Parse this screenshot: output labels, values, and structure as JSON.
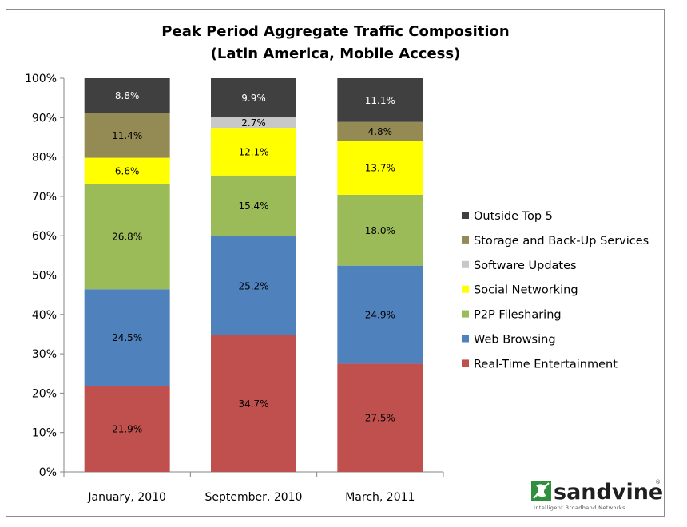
{
  "chart_data": {
    "type": "bar",
    "stacked": true,
    "percent_stacked": true,
    "title": "Peak Period Aggregate Traffic Composition",
    "subtitle": "(Latin America, Mobile Access)",
    "categories": [
      "January, 2010",
      "September, 2010",
      "March, 2011"
    ],
    "y_ticks": [
      "0%",
      "10%",
      "20%",
      "30%",
      "40%",
      "50%",
      "60%",
      "70%",
      "80%",
      "90%",
      "100%"
    ],
    "ylim": [
      0,
      100
    ],
    "grid": false,
    "legend_position": "right",
    "series": [
      {
        "name": "Real-Time Entertainment",
        "color": "#c0504d",
        "values": [
          21.9,
          34.7,
          27.5
        ],
        "labels": [
          "21.9%",
          "34.7%",
          "27.5%"
        ]
      },
      {
        "name": "Web Browsing",
        "color": "#4f81bd",
        "values": [
          24.5,
          25.2,
          24.9
        ],
        "labels": [
          "24.5%",
          "25.2%",
          "24.9%"
        ]
      },
      {
        "name": "P2P Filesharing",
        "color": "#9bbb59",
        "values": [
          26.8,
          15.4,
          18.0
        ],
        "labels": [
          "26.8%",
          "15.4%",
          "18.0%"
        ]
      },
      {
        "name": "Social Networking",
        "color": "#ffff00",
        "values": [
          6.6,
          12.1,
          13.7
        ],
        "labels": [
          "6.6%",
          "12.1%",
          "13.7%"
        ]
      },
      {
        "name": "Software Updates",
        "color": "#c8c8c8",
        "values": [
          0,
          2.7,
          0
        ],
        "labels": [
          "",
          "2.7%",
          ""
        ]
      },
      {
        "name": "Storage and Back-Up Services",
        "color": "#948a54",
        "values": [
          11.4,
          0,
          4.8
        ],
        "labels": [
          "11.4%",
          "",
          "4.8%"
        ]
      },
      {
        "name": "Outside Top 5",
        "color": "#404040",
        "values": [
          8.8,
          9.9,
          11.1
        ],
        "labels": [
          "8.8%",
          "9.9%",
          "11.1%"
        ]
      }
    ]
  },
  "logo": {
    "name": "sandvine",
    "tagline": "Intelligent Broadband Networks",
    "registered": "®",
    "icon": "sandvine-logo-icon"
  }
}
